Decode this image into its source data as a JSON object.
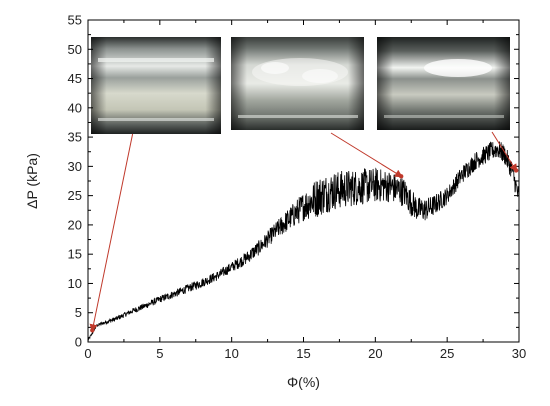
{
  "chart_data": {
    "type": "line",
    "xlabel": "Φ(%)",
    "ylabel": "ΔP (kPa)",
    "xlim": [
      0,
      30
    ],
    "ylim": [
      0,
      55
    ],
    "x_ticks": [
      0,
      5,
      10,
      15,
      20,
      25,
      30
    ],
    "y_ticks": [
      0,
      5,
      10,
      15,
      20,
      25,
      30,
      35,
      40,
      45,
      50,
      55
    ],
    "grid": false,
    "legend": "none",
    "series_color": "#000000",
    "annotation_color": "#c0392b",
    "trend": [
      [
        0.0,
        0.3
      ],
      [
        0.3,
        1.5
      ],
      [
        0.6,
        2.8
      ],
      [
        1.0,
        3.2
      ],
      [
        2.0,
        4.0
      ],
      [
        3.0,
        5.2
      ],
      [
        4.0,
        6.2
      ],
      [
        5.0,
        7.3
      ],
      [
        6.0,
        8.2
      ],
      [
        7.0,
        9.2
      ],
      [
        8.0,
        10.2
      ],
      [
        9.0,
        11.3
      ],
      [
        10.0,
        12.8
      ],
      [
        11.0,
        14.3
      ],
      [
        12.0,
        16.3
      ],
      [
        13.0,
        18.8
      ],
      [
        14.0,
        21.0
      ],
      [
        15.0,
        23.2
      ],
      [
        16.0,
        24.8
      ],
      [
        17.0,
        25.8
      ],
      [
        18.0,
        26.2
      ],
      [
        19.0,
        26.5
      ],
      [
        20.0,
        26.8
      ],
      [
        21.0,
        26.6
      ],
      [
        22.0,
        25.6
      ],
      [
        22.5,
        23.8
      ],
      [
        23.0,
        22.6
      ],
      [
        23.5,
        22.6
      ],
      [
        24.0,
        23.2
      ],
      [
        25.0,
        25.0
      ],
      [
        26.0,
        28.5
      ],
      [
        27.0,
        31.0
      ],
      [
        28.0,
        32.5
      ],
      [
        28.5,
        33.0
      ],
      [
        29.0,
        32.0
      ],
      [
        29.5,
        29.5
      ],
      [
        30.0,
        24.5
      ]
    ],
    "noise": [
      [
        0,
        0.2
      ],
      [
        2,
        0.4
      ],
      [
        5,
        0.6
      ],
      [
        10,
        0.9
      ],
      [
        13,
        1.5
      ],
      [
        15,
        2.5
      ],
      [
        16,
        3.5
      ],
      [
        20,
        3.0
      ],
      [
        22,
        2.5
      ],
      [
        25,
        1.5
      ],
      [
        28,
        1.6
      ],
      [
        30,
        1.8
      ]
    ],
    "photo_insets": [
      {
        "name": "inset-photo-1",
        "points_to": [
          0.3,
          2.0
        ]
      },
      {
        "name": "inset-photo-2",
        "points_to": [
          21.8,
          28.3
        ]
      },
      {
        "name": "inset-photo-3",
        "points_to": [
          29.8,
          29.3
        ]
      }
    ]
  }
}
